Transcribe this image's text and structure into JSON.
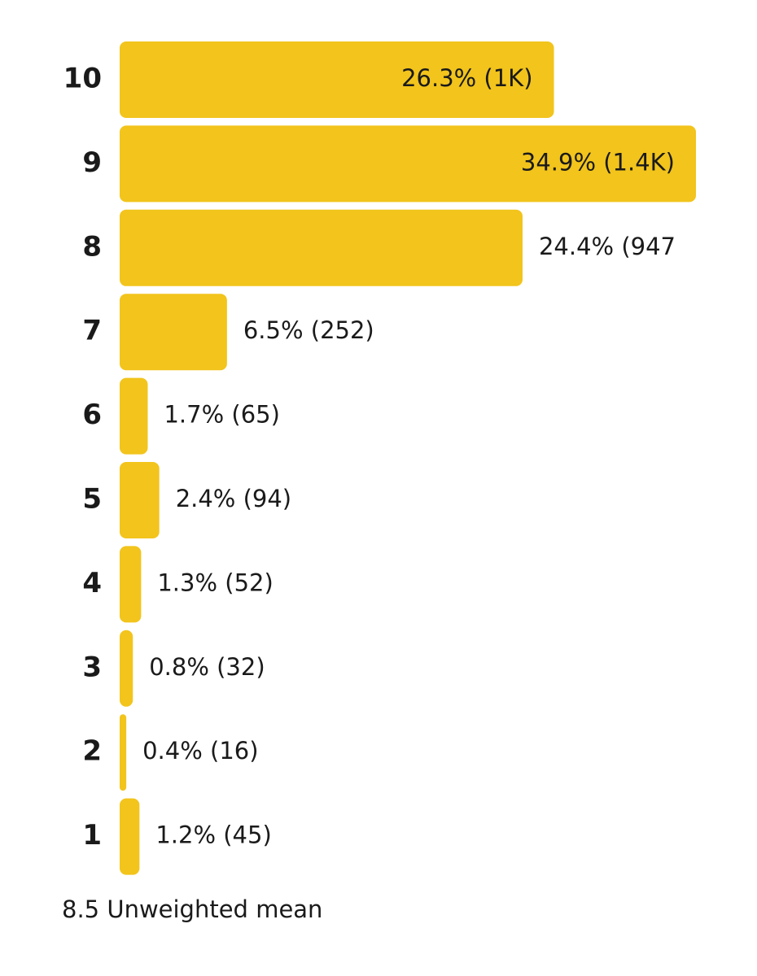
{
  "chart_data": {
    "type": "bar",
    "orientation": "horizontal",
    "categories": [
      "10",
      "9",
      "8",
      "7",
      "6",
      "5",
      "4",
      "3",
      "2",
      "1"
    ],
    "values": [
      26.3,
      34.9,
      24.4,
      6.5,
      1.7,
      2.4,
      1.3,
      0.8,
      0.4,
      1.2
    ],
    "value_labels": [
      "26.3% (1K)",
      "34.9% (1.4K)",
      "24.4% (947",
      "6.5% (252)",
      "1.7% (65)",
      "2.4% (94)",
      "1.3% (52)",
      "0.8% (32)",
      "0.4% (16)",
      "1.2% (45)"
    ],
    "color": "#f2c41c",
    "footnote": "8.5 Unweighted mean"
  }
}
